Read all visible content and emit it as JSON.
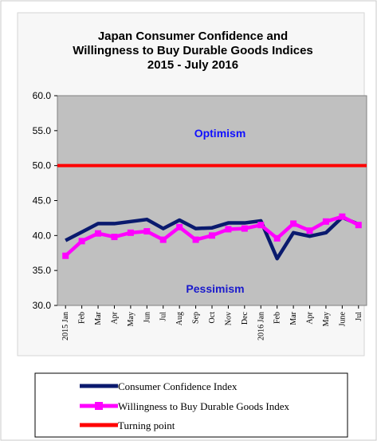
{
  "chart_data": {
    "type": "line",
    "title": [
      "Japan Consumer Confidence and",
      "Willingness to Buy Durable Goods Indices",
      "2015 - July  2016"
    ],
    "categories": [
      "2015 Jan",
      "Feb",
      "Mar",
      "Apr",
      "May",
      "Jun",
      "Jul",
      "Aug",
      "Sep",
      "Oct",
      "Nov",
      "Dec",
      "2016 Jan",
      "Feb",
      "Mar",
      "Apr",
      "May",
      "June",
      "Jul"
    ],
    "ylim": [
      30,
      60
    ],
    "yticks": [
      "30.0",
      "35.0",
      "40.0",
      "45.0",
      "50.0",
      "55.0",
      "60.0"
    ],
    "grid": false,
    "legend_position": "bottom",
    "annotations": {
      "optimism": "Optimism",
      "pessimism": "Pessimism"
    },
    "series": [
      {
        "name": "Consumer Confidence Index",
        "color": "#0a1a6e",
        "marker": "none",
        "values": [
          39.3,
          40.5,
          41.7,
          41.7,
          42.0,
          42.3,
          41.0,
          42.2,
          41.0,
          41.1,
          41.8,
          41.8,
          42.1,
          36.7,
          40.4,
          39.9,
          40.4,
          42.6,
          41.6
        ]
      },
      {
        "name": "Willingness to Buy Durable Goods Index",
        "color": "#ff00ff",
        "marker": "square",
        "values": [
          37.1,
          39.2,
          40.3,
          39.8,
          40.4,
          40.6,
          39.4,
          41.2,
          39.4,
          40.0,
          40.9,
          41.0,
          41.5,
          39.6,
          41.7,
          40.7,
          42.0,
          42.7,
          41.5
        ]
      },
      {
        "name": "Turning point",
        "color": "#ff0000",
        "marker": "none",
        "values": [
          50,
          50,
          50,
          50,
          50,
          50,
          50,
          50,
          50,
          50,
          50,
          50,
          50,
          50,
          50,
          50,
          50,
          50,
          50
        ]
      }
    ]
  }
}
